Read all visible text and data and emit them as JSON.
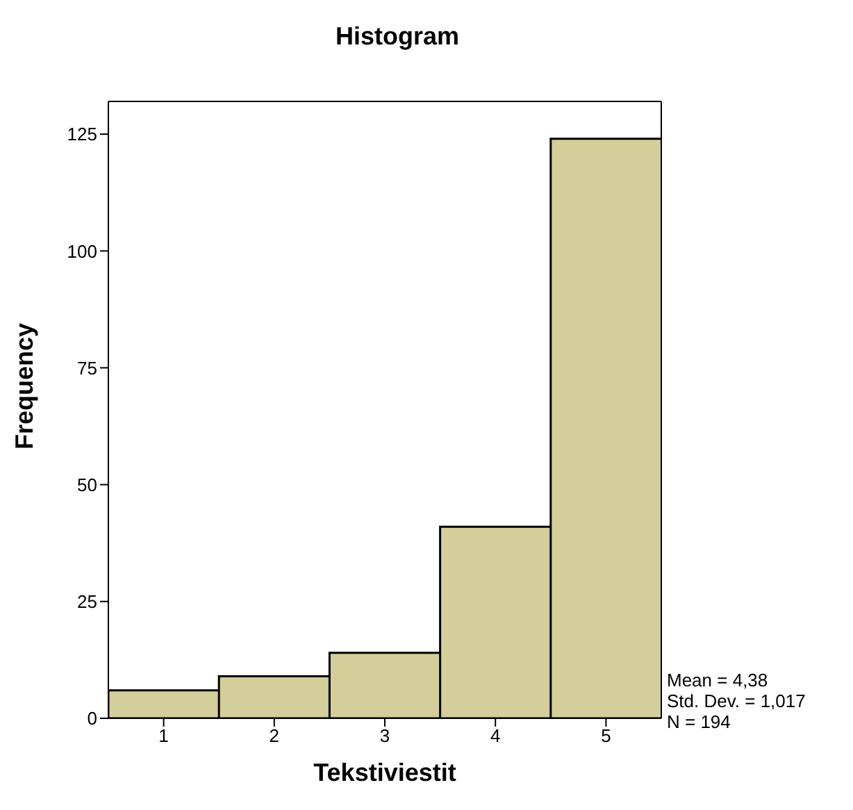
{
  "chart_data": {
    "type": "histogram",
    "title": "Histogram",
    "xlabel": "Tekstiviestit",
    "ylabel": "Frequency",
    "bins": [
      0.5,
      1.5,
      2.5,
      3.5,
      4.5,
      5.5
    ],
    "values": [
      6,
      9,
      14,
      41,
      124
    ],
    "color": "#d3ce9a",
    "xlim": [
      0.5,
      5.5
    ],
    "xticks": [
      1,
      2,
      3,
      4,
      5
    ],
    "ylim": [
      0,
      132
    ],
    "yticks": [
      0,
      25,
      50,
      75,
      100,
      125
    ],
    "annotations": [
      "Mean = 4,38",
      "Std. Dev. = 1,017",
      "N = 194"
    ]
  }
}
